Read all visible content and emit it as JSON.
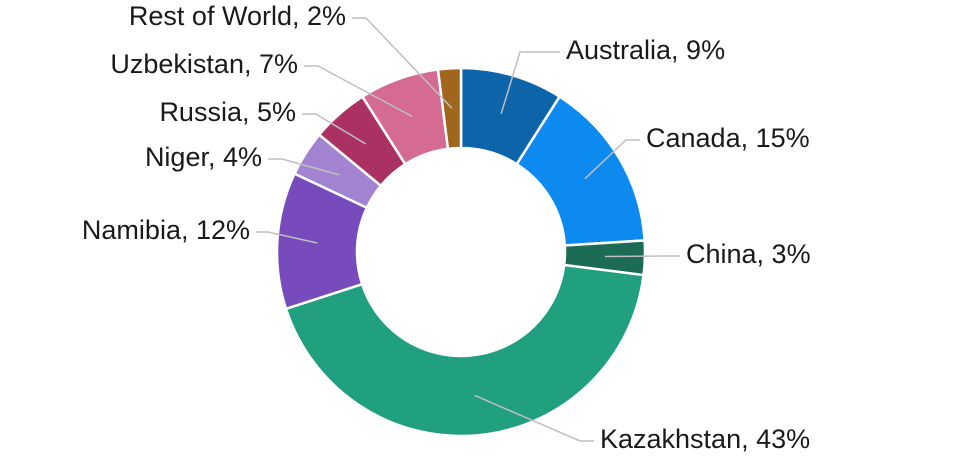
{
  "chart_data": {
    "type": "pie",
    "donut": true,
    "title": "",
    "legend": "none",
    "direction": "clockwise",
    "start": "top",
    "slices": [
      {
        "label": "Australia",
        "value": 9,
        "display": "Australia, 9%",
        "color": "#0e64a8"
      },
      {
        "label": "Canada",
        "value": 15,
        "display": "Canada, 15%",
        "color": "#0d8af0"
      },
      {
        "label": "China",
        "value": 3,
        "display": "China, 3%",
        "color": "#1b6b55"
      },
      {
        "label": "Kazakhstan",
        "value": 43,
        "display": "Kazakhstan, 43%",
        "color": "#21a07f"
      },
      {
        "label": "Namibia",
        "value": 12,
        "display": "Namibia, 12%",
        "color": "#784bbd"
      },
      {
        "label": "Niger",
        "value": 4,
        "display": "Niger, 4%",
        "color": "#a283d2"
      },
      {
        "label": "Russia",
        "value": 5,
        "display": "Russia, 5%",
        "color": "#ab3162"
      },
      {
        "label": "Uzbekistan",
        "value": 7,
        "display": "Uzbekistan, 7%",
        "color": "#d56a93"
      },
      {
        "label": "Rest of World",
        "value": 2,
        "display": "Rest of World, 2%",
        "color": "#a0661d"
      }
    ]
  }
}
